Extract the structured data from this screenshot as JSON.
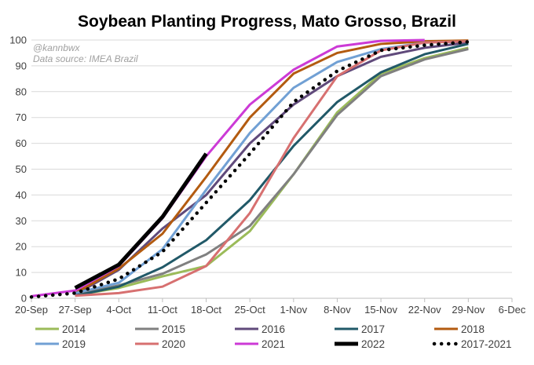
{
  "chart_data": {
    "type": "line",
    "title": "Soybean Planting Progress, Mato Grosso, Brazil",
    "annotations": [
      "@kannbwx",
      "Data source: IMEA Brazil"
    ],
    "xlabel": "",
    "ylabel": "",
    "ylim": [
      0,
      100
    ],
    "yticks": [
      0,
      10,
      20,
      30,
      40,
      50,
      60,
      70,
      80,
      90,
      100
    ],
    "x_tick_labels": [
      "20-Sep",
      "27-Sep",
      "4-Oct",
      "11-Oct",
      "18-Oct",
      "25-Oct",
      "1-Nov",
      "8-Nov",
      "15-Nov",
      "22-Nov",
      "29-Nov",
      "6-Dec"
    ],
    "x_unit": "week index (0 = 20-Sep)",
    "legend_position": "bottom",
    "series": [
      {
        "name": "2014",
        "color": "#9bbb59",
        "style": "solid",
        "points": [
          [
            1,
            1.2
          ],
          [
            2,
            4
          ],
          [
            3,
            8.5
          ],
          [
            4,
            12.5
          ],
          [
            5,
            26
          ],
          [
            6,
            48
          ],
          [
            7,
            72
          ],
          [
            8,
            87
          ],
          [
            9,
            93
          ],
          [
            10,
            97
          ]
        ]
      },
      {
        "name": "2015",
        "color": "#808080",
        "style": "solid",
        "points": [
          [
            1,
            1.5
          ],
          [
            2,
            5
          ],
          [
            3,
            9.5
          ],
          [
            4,
            17
          ],
          [
            5,
            28
          ],
          [
            6,
            48
          ],
          [
            7,
            71
          ],
          [
            8,
            86
          ],
          [
            9,
            92.5
          ],
          [
            10,
            96.5
          ]
        ]
      },
      {
        "name": "2016",
        "color": "#604a7b",
        "style": "solid",
        "points": [
          [
            1,
            1.5
          ],
          [
            2,
            11
          ],
          [
            3,
            27
          ],
          [
            4,
            40
          ],
          [
            5,
            60
          ],
          [
            6,
            75
          ],
          [
            7,
            86
          ],
          [
            8,
            93.5
          ],
          [
            9,
            97
          ],
          [
            10,
            99
          ]
        ]
      },
      {
        "name": "2017",
        "color": "#215968",
        "style": "solid",
        "points": [
          [
            1,
            1
          ],
          [
            2,
            4.5
          ],
          [
            3,
            12
          ],
          [
            4,
            22.5
          ],
          [
            5,
            38
          ],
          [
            6,
            59
          ],
          [
            7,
            76
          ],
          [
            8,
            87.5
          ],
          [
            9,
            94.5
          ],
          [
            10,
            98.5
          ]
        ]
      },
      {
        "name": "2018",
        "color": "#b35b10",
        "style": "solid",
        "points": [
          [
            1,
            2
          ],
          [
            2,
            11.5
          ],
          [
            3,
            25
          ],
          [
            4,
            47
          ],
          [
            5,
            70
          ],
          [
            6,
            87
          ],
          [
            7,
            95
          ],
          [
            8,
            98.5
          ],
          [
            9,
            99.5
          ],
          [
            10,
            99.8
          ]
        ]
      },
      {
        "name": "2019",
        "color": "#71a0d4",
        "style": "solid",
        "points": [
          [
            1,
            2
          ],
          [
            2,
            6
          ],
          [
            3,
            19
          ],
          [
            4,
            42
          ],
          [
            5,
            64
          ],
          [
            6,
            81.5
          ],
          [
            7,
            91.5
          ],
          [
            8,
            96.5
          ],
          [
            9,
            99
          ],
          [
            10,
            99.5
          ]
        ]
      },
      {
        "name": "2020",
        "color": "#d77070",
        "style": "solid",
        "points": [
          [
            1,
            1
          ],
          [
            2,
            2
          ],
          [
            3,
            4.5
          ],
          [
            4,
            12.5
          ],
          [
            5,
            33
          ],
          [
            6,
            62
          ],
          [
            7,
            86
          ],
          [
            8,
            96
          ],
          [
            9,
            99
          ],
          [
            10,
            99.5
          ]
        ]
      },
      {
        "name": "2021",
        "color": "#cc3ad6",
        "style": "solid",
        "points": [
          [
            0,
            0.8
          ],
          [
            1,
            3
          ],
          [
            2,
            12.5
          ],
          [
            3,
            31
          ],
          [
            4,
            55
          ],
          [
            5,
            75
          ],
          [
            6,
            88.5
          ],
          [
            7,
            97.5
          ],
          [
            8,
            99.7
          ],
          [
            9,
            100
          ]
        ]
      },
      {
        "name": "2022",
        "color": "#000000",
        "style": "solid",
        "points": [
          [
            1,
            4
          ],
          [
            2,
            13
          ],
          [
            3,
            31.5
          ],
          [
            4,
            56
          ]
        ]
      },
      {
        "name": "2017-2021",
        "color": "#000000",
        "style": "dotted",
        "points": [
          [
            0,
            0.5
          ],
          [
            1,
            2
          ],
          [
            2,
            7.5
          ],
          [
            3,
            18
          ],
          [
            4,
            37
          ],
          [
            5,
            56
          ],
          [
            6,
            76
          ],
          [
            7,
            88
          ],
          [
            8,
            96
          ],
          [
            9,
            98
          ],
          [
            10,
            99.3
          ]
        ]
      }
    ]
  }
}
